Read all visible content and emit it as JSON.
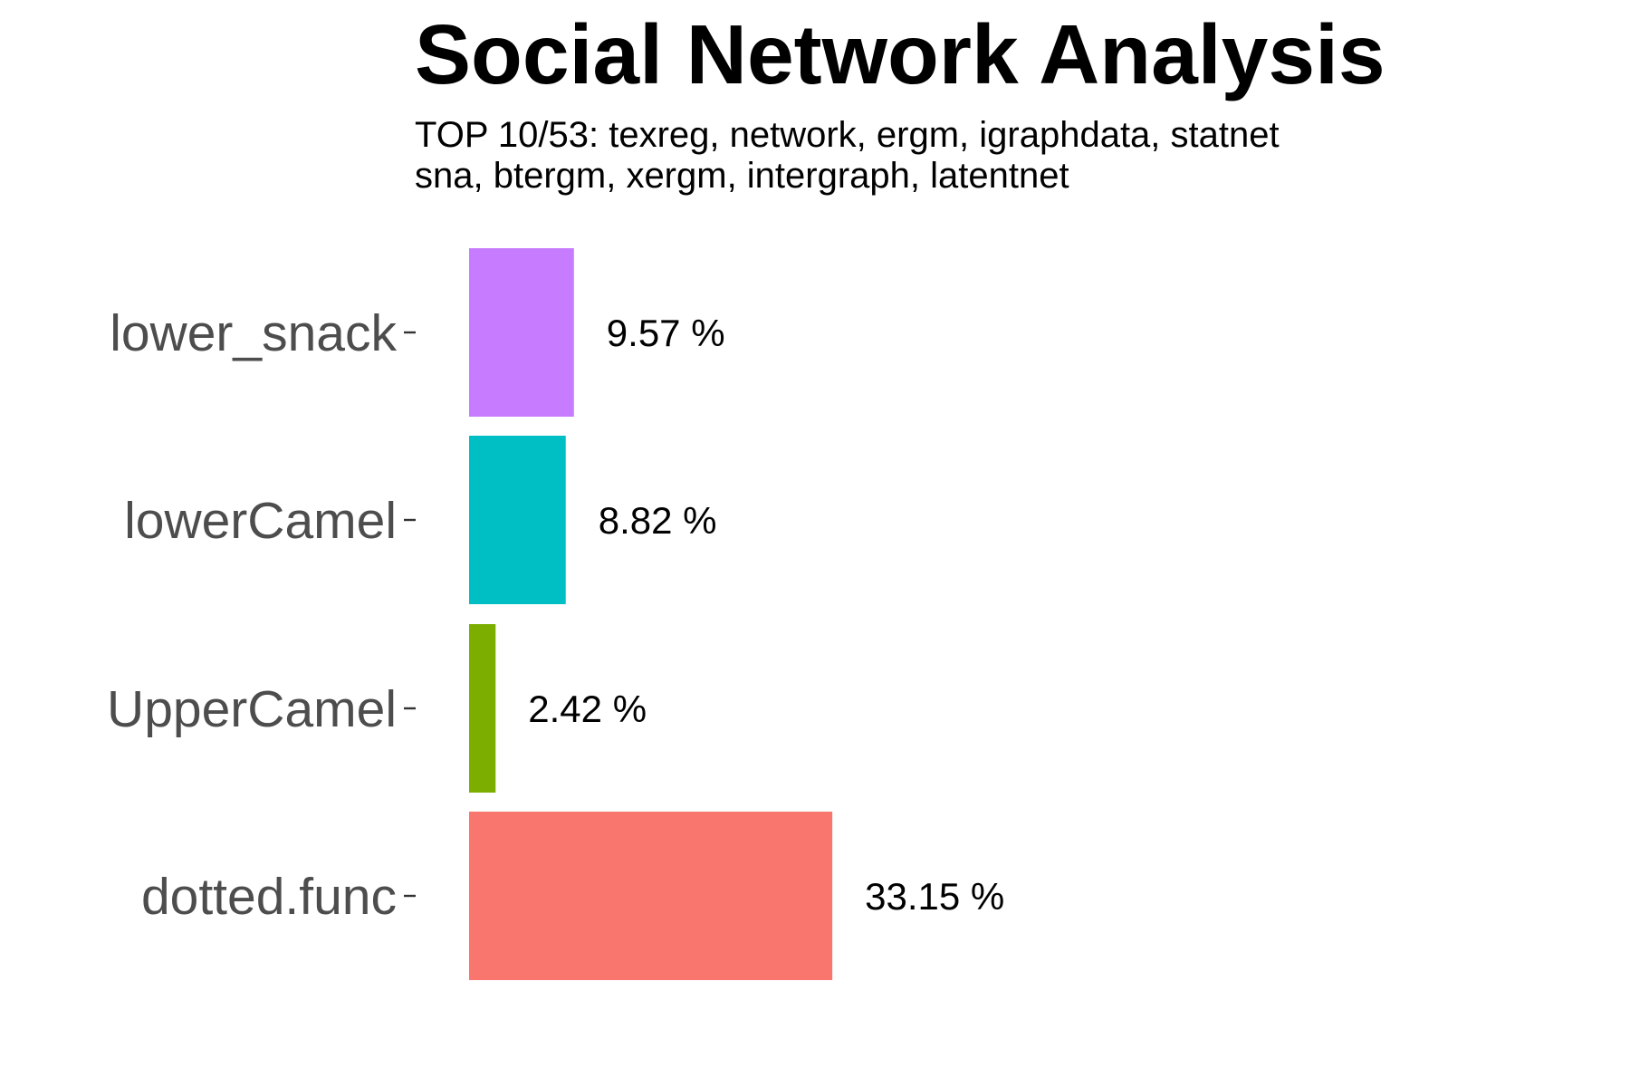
{
  "chart_data": {
    "type": "bar",
    "orientation": "horizontal",
    "title": "Social Network Analysis",
    "subtitle_lines": [
      "TOP 10/53: texreg, network, ergm, igraphdata, statnet",
      "sna, btergm, xergm, intergraph, latentnet"
    ],
    "categories": [
      "lower_snack",
      "lowerCamel",
      "UpperCamel",
      "dotted.func"
    ],
    "values": [
      9.57,
      8.82,
      2.42,
      33.15
    ],
    "value_labels": [
      "9.57 %",
      "8.82 %",
      "2.42 %",
      "33.15 %"
    ],
    "colors": [
      "#C77CFF",
      "#00BFC4",
      "#7CAE00",
      "#F8766D"
    ],
    "xlabel": "",
    "ylabel": "",
    "xlim": [
      0,
      100
    ],
    "grid": false,
    "legend": "none"
  }
}
